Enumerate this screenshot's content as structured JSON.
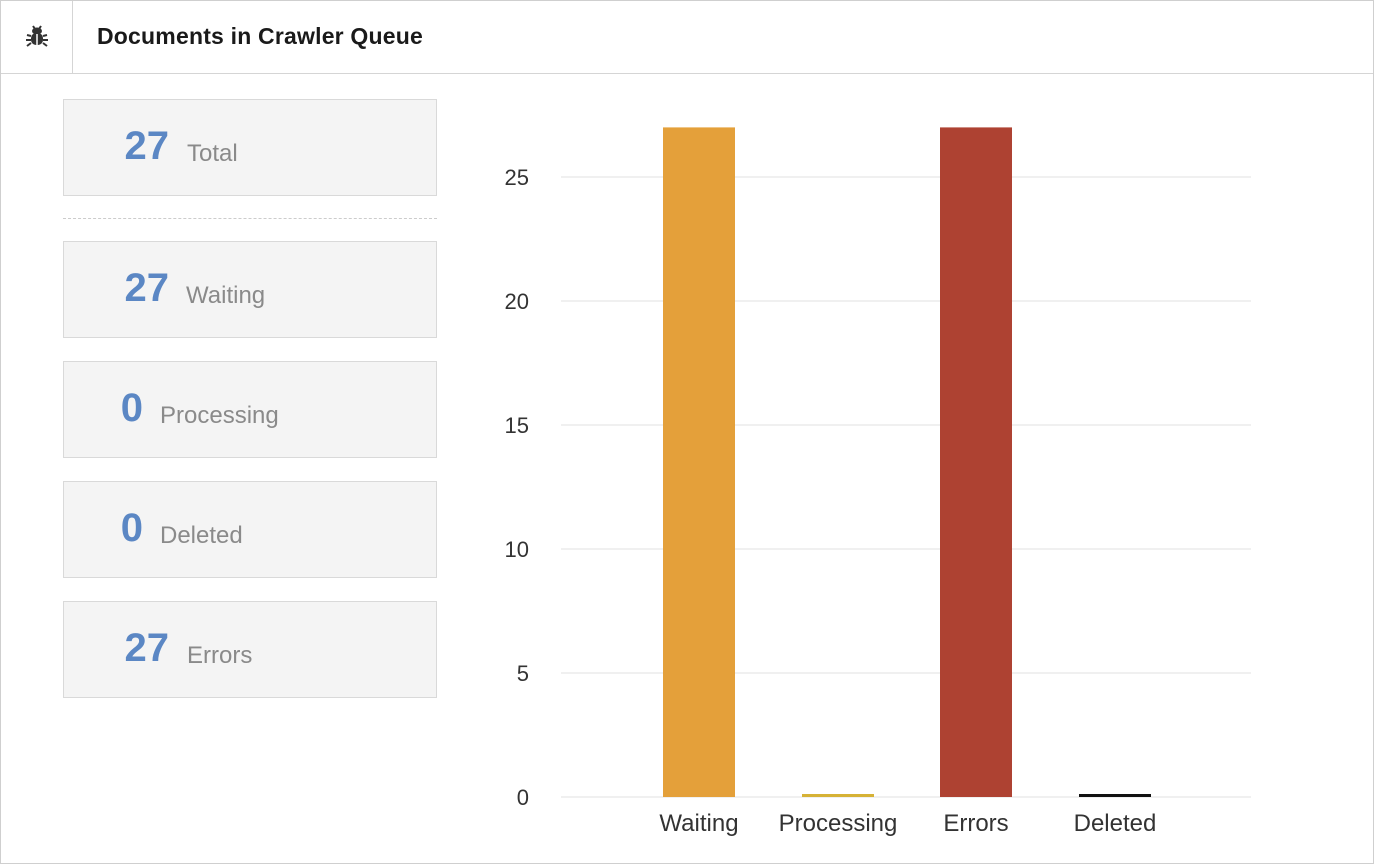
{
  "header": {
    "title": "Documents in Crawler Queue",
    "icon": "bug-icon"
  },
  "stats": [
    {
      "value": "27",
      "label": "Total"
    },
    {
      "value": "27",
      "label": "Waiting"
    },
    {
      "value": "0",
      "label": "Processing"
    },
    {
      "value": "0",
      "label": "Deleted"
    },
    {
      "value": "27",
      "label": "Errors"
    }
  ],
  "chart_data": {
    "type": "bar",
    "title": "",
    "xlabel": "",
    "ylabel": "",
    "categories": [
      "Waiting",
      "Processing",
      "Errors",
      "Deleted"
    ],
    "values": [
      27,
      0,
      27,
      0
    ],
    "colors": [
      "#e4a03a",
      "#d6b236",
      "#ae4232",
      "#111111"
    ],
    "yticks": [
      0,
      5,
      10,
      15,
      20,
      25
    ],
    "ylim": [
      0,
      27
    ],
    "grid": true,
    "legend": "none"
  }
}
